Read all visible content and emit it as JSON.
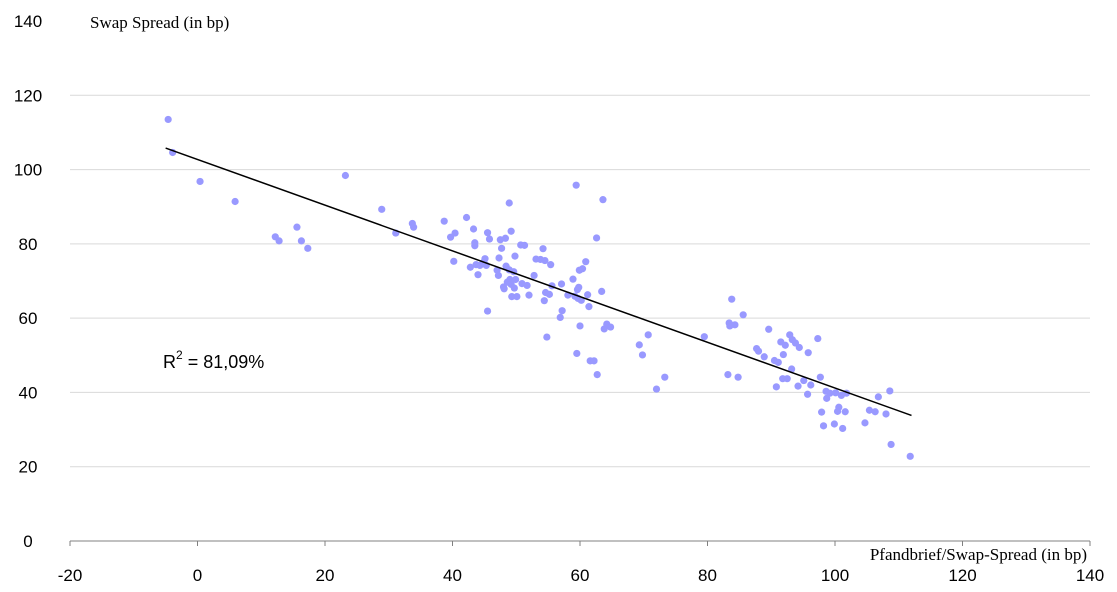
{
  "chart_data": {
    "type": "scatter",
    "title": "",
    "ylabel": "Swap Spread (in bp)",
    "xlabel": "Pfandbrief/Swap-Spread (in bp)",
    "xlim": [
      -20,
      140
    ],
    "ylim": [
      0,
      140
    ],
    "x_ticks": [
      "-20",
      "0",
      "20",
      "40",
      "60",
      "80",
      "100",
      "120",
      "140"
    ],
    "y_ticks": [
      "0",
      "20",
      "40",
      "60",
      "80",
      "100",
      "120",
      "140"
    ],
    "grid": "horizontal",
    "annotation": {
      "prefix": "R",
      "sup": "2",
      "suffix": " = 81,09%"
    },
    "point_color": "#9999ff",
    "trendline": {
      "x": [
        -5,
        112
      ],
      "y": [
        105.8,
        33.8
      ]
    },
    "points": [
      [
        -4.6,
        113.5
      ],
      [
        -3.9,
        104.6
      ],
      [
        0.4,
        96.8
      ],
      [
        5.9,
        91.4
      ],
      [
        12.2,
        81.9
      ],
      [
        12.8,
        80.8
      ],
      [
        15.6,
        84.5
      ],
      [
        16.3,
        80.8
      ],
      [
        17.3,
        78.8
      ],
      [
        23.2,
        98.4
      ],
      [
        28.9,
        89.3
      ],
      [
        31.1,
        82.9
      ],
      [
        33.7,
        85.5
      ],
      [
        33.9,
        84.5
      ],
      [
        38.7,
        86.1
      ],
      [
        39.7,
        81.8
      ],
      [
        40.2,
        75.3
      ],
      [
        40.4,
        82.9
      ],
      [
        42.2,
        87.1
      ],
      [
        42.8,
        73.7
      ],
      [
        43.3,
        84.0
      ],
      [
        43.5,
        80.3
      ],
      [
        43.5,
        79.5
      ],
      [
        43.7,
        74.4
      ],
      [
        44.0,
        71.7
      ],
      [
        44.3,
        74.2
      ],
      [
        44.9,
        75.1
      ],
      [
        45.1,
        76.0
      ],
      [
        45.3,
        74.2
      ],
      [
        45.5,
        83.0
      ],
      [
        45.5,
        61.9
      ],
      [
        45.8,
        81.3
      ],
      [
        47.0,
        72.9
      ],
      [
        47.2,
        71.5
      ],
      [
        47.3,
        76.2
      ],
      [
        47.5,
        81.1
      ],
      [
        47.7,
        78.8
      ],
      [
        48.0,
        68.4
      ],
      [
        48.1,
        67.9
      ],
      [
        48.3,
        81.5
      ],
      [
        48.4,
        74.0
      ],
      [
        48.6,
        69.7
      ],
      [
        48.9,
        91.0
      ],
      [
        48.9,
        73.0
      ],
      [
        49.0,
        70.4
      ],
      [
        49.2,
        83.4
      ],
      [
        49.2,
        69.1
      ],
      [
        49.3,
        65.8
      ],
      [
        49.6,
        72.5
      ],
      [
        49.7,
        68.1
      ],
      [
        49.8,
        76.7
      ],
      [
        49.9,
        70.4
      ],
      [
        50.1,
        65.8
      ],
      [
        50.7,
        79.7
      ],
      [
        50.9,
        69.3
      ],
      [
        51.3,
        79.6
      ],
      [
        51.7,
        68.8
      ],
      [
        52.0,
        66.2
      ],
      [
        52.8,
        71.5
      ],
      [
        53.1,
        75.9
      ],
      [
        53.8,
        75.8
      ],
      [
        54.2,
        78.7
      ],
      [
        54.4,
        64.7
      ],
      [
        54.5,
        75.5
      ],
      [
        54.6,
        66.9
      ],
      [
        54.8,
        54.9
      ],
      [
        55.2,
        66.4
      ],
      [
        55.4,
        74.4
      ],
      [
        55.6,
        68.7
      ],
      [
        56.9,
        60.2
      ],
      [
        57.1,
        69.2
      ],
      [
        57.2,
        62.0
      ],
      [
        58.1,
        66.2
      ],
      [
        58.9,
        70.5
      ],
      [
        59.2,
        65.9
      ],
      [
        59.4,
        95.8
      ],
      [
        59.5,
        50.5
      ],
      [
        59.6,
        67.7
      ],
      [
        59.7,
        65.3
      ],
      [
        59.8,
        68.3
      ],
      [
        59.9,
        72.9
      ],
      [
        60.0,
        57.9
      ],
      [
        60.2,
        64.8
      ],
      [
        60.4,
        73.3
      ],
      [
        60.9,
        75.2
      ],
      [
        61.2,
        66.3
      ],
      [
        61.4,
        63.1
      ],
      [
        61.6,
        48.5
      ],
      [
        62.2,
        48.5
      ],
      [
        62.6,
        81.6
      ],
      [
        62.7,
        44.8
      ],
      [
        63.4,
        67.2
      ],
      [
        63.6,
        91.9
      ],
      [
        63.8,
        57.1
      ],
      [
        64.2,
        58.4
      ],
      [
        64.8,
        57.6
      ],
      [
        69.3,
        52.8
      ],
      [
        69.8,
        50.1
      ],
      [
        70.7,
        55.5
      ],
      [
        72.0,
        40.9
      ],
      [
        73.3,
        44.1
      ],
      [
        79.5,
        55.0
      ],
      [
        83.2,
        44.8
      ],
      [
        83.4,
        58.7
      ],
      [
        83.5,
        57.9
      ],
      [
        83.8,
        65.1
      ],
      [
        84.3,
        58.2
      ],
      [
        84.8,
        44.1
      ],
      [
        85.6,
        60.9
      ],
      [
        87.7,
        51.8
      ],
      [
        88.0,
        51.1
      ],
      [
        88.9,
        49.6
      ],
      [
        89.6,
        57.0
      ],
      [
        90.5,
        48.6
      ],
      [
        90.8,
        41.5
      ],
      [
        91.1,
        48.1
      ],
      [
        91.5,
        53.6
      ],
      [
        91.8,
        43.7
      ],
      [
        91.9,
        50.2
      ],
      [
        92.2,
        52.7
      ],
      [
        92.5,
        43.7
      ],
      [
        92.9,
        55.5
      ],
      [
        93.2,
        46.3
      ],
      [
        93.3,
        54.2
      ],
      [
        93.8,
        53.3
      ],
      [
        94.2,
        41.7
      ],
      [
        94.4,
        52.1
      ],
      [
        95.1,
        43.2
      ],
      [
        95.7,
        39.5
      ],
      [
        95.8,
        50.7
      ],
      [
        96.2,
        42.0
      ],
      [
        97.3,
        54.5
      ],
      [
        97.7,
        44.1
      ],
      [
        97.9,
        34.7
      ],
      [
        98.2,
        31.0
      ],
      [
        98.6,
        40.3
      ],
      [
        98.7,
        38.4
      ],
      [
        99.2,
        39.8
      ],
      [
        99.9,
        31.5
      ],
      [
        100.1,
        39.9
      ],
      [
        100.4,
        34.9
      ],
      [
        100.6,
        36.0
      ],
      [
        101.0,
        39.2
      ],
      [
        101.2,
        30.3
      ],
      [
        101.6,
        34.8
      ],
      [
        101.8,
        39.8
      ],
      [
        104.7,
        31.8
      ],
      [
        105.4,
        35.2
      ],
      [
        106.3,
        34.8
      ],
      [
        106.8,
        38.8
      ],
      [
        108.0,
        34.2
      ],
      [
        108.6,
        40.4
      ],
      [
        108.8,
        26.0
      ],
      [
        111.8,
        22.8
      ]
    ]
  }
}
